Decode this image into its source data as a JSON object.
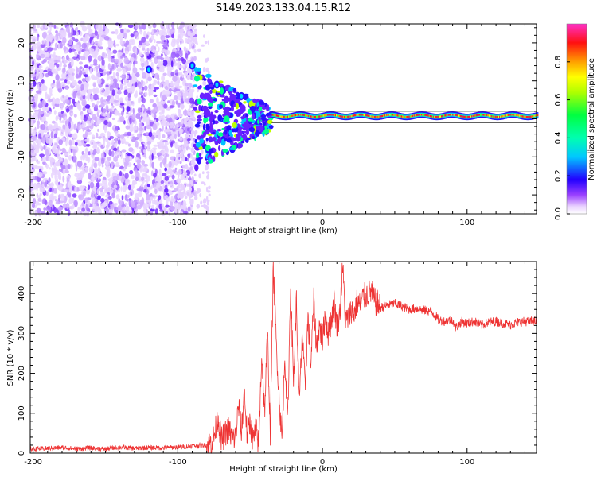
{
  "figure": {
    "title": "S149.2023.133.04.15.R12"
  },
  "chart_data": [
    {
      "type": "heatmap",
      "xlabel": "Height of straight line (km)",
      "ylabel": "Frequency (Hz)",
      "xlim": [
        -202,
        148
      ],
      "ylim": [
        -25,
        25
      ],
      "xticks": [
        -200,
        -100,
        0,
        100
      ],
      "xtick_labels": [
        "-200",
        "-100",
        "0",
        "100"
      ],
      "yticks": [
        -20,
        -10,
        0,
        10,
        20
      ],
      "ytick_labels": [
        "-20",
        "-10",
        "0",
        "10",
        "20"
      ],
      "colorbar": {
        "label": "Normalized spectral amplitude",
        "range": [
          0.0,
          1.0
        ],
        "ticks": [
          0.0,
          0.2,
          0.4,
          0.6,
          0.8
        ],
        "tick_labels": [
          "0.0",
          "0.2",
          "0.4",
          "0.6",
          "0.8"
        ],
        "colormap": "gist_ncar_r-like (white-violet-blue-cyan-green-yellow-orange-red-magenta)"
      },
      "features": [
        {
          "region": "noise",
          "x_range": [
            -202,
            -88
          ],
          "freq_range": [
            -25,
            25
          ],
          "amplitude": "low, scattered violet speckle"
        },
        {
          "region": "transition",
          "x_range": [
            -88,
            -35
          ],
          "description": "converging scattered blobs toward 0 Hz"
        },
        {
          "region": "carrier",
          "x_range": [
            -35,
            148
          ],
          "freq_center": 0.8,
          "amplitude": "high (red/orange), narrow band"
        }
      ],
      "markers": [
        {
          "x": -120,
          "y": 13
        },
        {
          "x": -90,
          "y": 14
        },
        {
          "x": -73,
          "y": 9
        },
        {
          "x": -56,
          "y": 6
        }
      ],
      "guide_lines": [
        -1,
        2
      ]
    },
    {
      "type": "line",
      "xlabel": "Height of straight line (km)",
      "ylabel": "SNR (10 * v/v)",
      "xlim": [
        -202,
        148
      ],
      "ylim": [
        0,
        480
      ],
      "xticks": [
        -200,
        -100,
        0,
        100
      ],
      "xtick_labels": [
        "-200",
        "-100",
        "0",
        "100"
      ],
      "yticks": [
        0,
        100,
        200,
        300,
        400
      ],
      "ytick_labels": [
        "0",
        "100",
        "200",
        "300",
        "400"
      ],
      "color": "#ee3333",
      "series": [
        {
          "x": [
            -202,
            -190,
            -180,
            -170,
            -160,
            -150,
            -140,
            -130,
            -120,
            -110,
            -100,
            -90,
            -82,
            -78,
            -75,
            -72,
            -70,
            -68,
            -65,
            -62,
            -60,
            -58,
            -56,
            -54,
            -52,
            -50,
            -48,
            -46,
            -44,
            -42,
            -40,
            -38,
            -36,
            -34,
            -32,
            -30,
            -28,
            -26,
            -24,
            -22,
            -20,
            -18,
            -16,
            -14,
            -12,
            -10,
            -8,
            -6,
            -4,
            -2,
            0,
            2,
            4,
            6,
            8,
            10,
            12,
            14,
            16,
            18,
            20,
            22,
            24,
            26,
            28,
            30,
            32,
            34,
            36,
            38,
            40,
            45,
            50,
            55,
            60,
            65,
            70,
            75,
            78,
            80,
            82,
            85,
            90,
            92,
            94,
            96,
            100,
            105,
            110,
            115,
            120,
            125,
            130,
            135,
            140,
            145,
            148
          ],
          "y": [
            10,
            12,
            14,
            11,
            13,
            10,
            15,
            12,
            14,
            13,
            15,
            18,
            20,
            22,
            40,
            90,
            30,
            45,
            60,
            35,
            40,
            120,
            50,
            160,
            40,
            80,
            30,
            60,
            20,
            250,
            100,
            300,
            50,
            470,
            280,
            150,
            30,
            250,
            80,
            420,
            180,
            380,
            120,
            300,
            160,
            340,
            220,
            380,
            260,
            320,
            280,
            350,
            300,
            330,
            380,
            320,
            350,
            470,
            330,
            340,
            360,
            350,
            380,
            370,
            390,
            395,
            400,
            405,
            380,
            375,
            365,
            370,
            375,
            368,
            360,
            362,
            358,
            355,
            345,
            335,
            332,
            330,
            335,
            315,
            320,
            330,
            325,
            330,
            320,
            328,
            330,
            326,
            322,
            328,
            330,
            330,
            330
          ]
        }
      ]
    }
  ]
}
